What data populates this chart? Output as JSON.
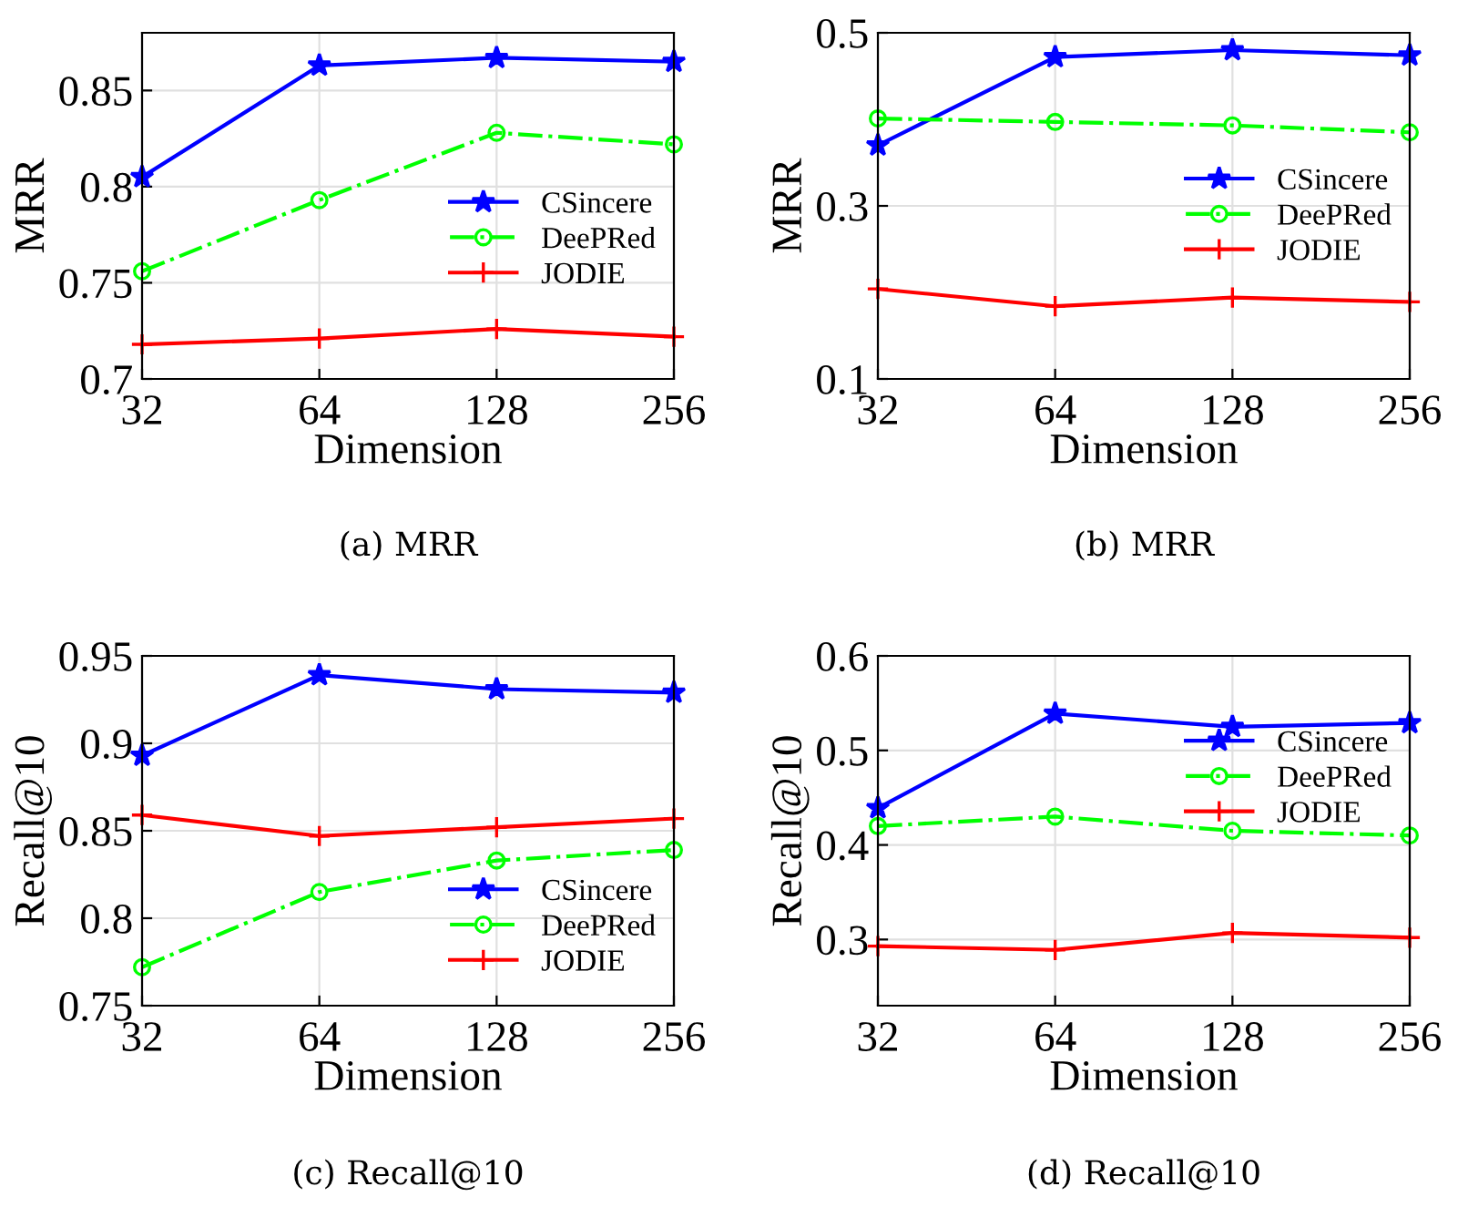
{
  "chart_data": [
    {
      "type": "line",
      "xlabel": "Dimension",
      "ylabel": "MRR",
      "categories": [
        "32",
        "64",
        "128",
        "256"
      ],
      "ylim": [
        0.7,
        0.88
      ],
      "yticks": [
        0.7,
        0.75,
        0.8,
        0.85
      ],
      "grid": true,
      "legend": "right",
      "annotations": [
        "(a) MRR"
      ],
      "series": [
        {
          "name": "CSincere",
          "color": "#0000ff",
          "marker": "star",
          "line_style": "solid",
          "values": [
            0.805,
            0.863,
            0.867,
            0.865
          ]
        },
        {
          "name": "DeePRed",
          "color": "#00ff00",
          "marker": "circle",
          "line_style": "dashdot",
          "values": [
            0.756,
            0.793,
            0.828,
            0.822
          ]
        },
        {
          "name": "JODIE",
          "color": "#ff0000",
          "marker": "cross",
          "line_style": "solid",
          "values": [
            0.718,
            0.721,
            0.726,
            0.722
          ]
        }
      ]
    },
    {
      "type": "line",
      "xlabel": "Dimension",
      "ylabel": "MRR",
      "categories": [
        "32",
        "64",
        "128",
        "256"
      ],
      "ylim": [
        0.1,
        0.5
      ],
      "yticks": [
        0.1,
        0.3,
        0.5
      ],
      "grid": true,
      "legend": "right",
      "annotations": [
        "(b) MRR"
      ],
      "series": [
        {
          "name": "CSincere",
          "color": "#0000ff",
          "marker": "star",
          "line_style": "solid",
          "values": [
            0.37,
            0.472,
            0.48,
            0.474
          ]
        },
        {
          "name": "DeePRed",
          "color": "#00ff00",
          "marker": "circle",
          "line_style": "dashdot",
          "values": [
            0.401,
            0.397,
            0.393,
            0.385
          ]
        },
        {
          "name": "JODIE",
          "color": "#ff0000",
          "marker": "cross",
          "line_style": "solid",
          "values": [
            0.204,
            0.184,
            0.194,
            0.189
          ]
        }
      ]
    },
    {
      "type": "line",
      "xlabel": "Dimension",
      "ylabel": "Recall@10",
      "categories": [
        "32",
        "64",
        "128",
        "256"
      ],
      "ylim": [
        0.75,
        0.95
      ],
      "yticks": [
        0.75,
        0.8,
        0.85,
        0.9,
        0.95
      ],
      "grid": true,
      "legend": "right",
      "annotations": [
        "(c) Recall@10"
      ],
      "series": [
        {
          "name": "CSincere",
          "color": "#0000ff",
          "marker": "star",
          "line_style": "solid",
          "values": [
            0.893,
            0.939,
            0.931,
            0.929
          ]
        },
        {
          "name": "DeePRed",
          "color": "#00ff00",
          "marker": "circle",
          "line_style": "dashdot",
          "values": [
            0.772,
            0.815,
            0.833,
            0.839
          ]
        },
        {
          "name": "JODIE",
          "color": "#ff0000",
          "marker": "cross",
          "line_style": "solid",
          "values": [
            0.859,
            0.847,
            0.852,
            0.857
          ]
        }
      ]
    },
    {
      "type": "line",
      "xlabel": "Dimension",
      "ylabel": "Recall@10",
      "categories": [
        "32",
        "64",
        "128",
        "256"
      ],
      "ylim": [
        0.23,
        0.6
      ],
      "yticks": [
        0.3,
        0.4,
        0.5,
        0.6
      ],
      "grid": true,
      "legend": "right",
      "annotations": [
        "(d) Recall@10"
      ],
      "series": [
        {
          "name": "CSincere",
          "color": "#0000ff",
          "marker": "star",
          "line_style": "solid",
          "values": [
            0.439,
            0.539,
            0.525,
            0.529
          ]
        },
        {
          "name": "DeePRed",
          "color": "#00ff00",
          "marker": "circle",
          "line_style": "dashdot",
          "values": [
            0.42,
            0.43,
            0.415,
            0.41
          ]
        },
        {
          "name": "JODIE",
          "color": "#ff0000",
          "marker": "cross",
          "line_style": "solid",
          "values": [
            0.293,
            0.289,
            0.307,
            0.302
          ]
        }
      ]
    }
  ]
}
